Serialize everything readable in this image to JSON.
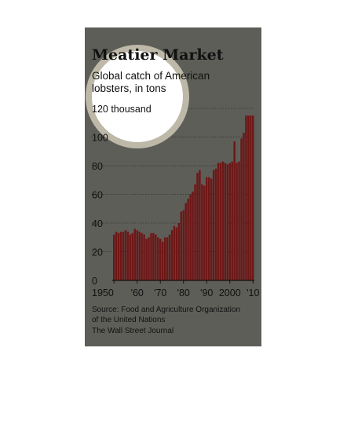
{
  "chart_data": {
    "type": "bar",
    "title": "Meatier Market",
    "subtitle": "Global catch of American lobsters, in tons",
    "subtitle_lines": [
      "Global catch of American",
      "lobsters, in tons"
    ],
    "ylabel": "",
    "xlabel": "",
    "ylim": [
      0,
      120
    ],
    "y_ticks": [
      {
        "value": 0,
        "label": "0"
      },
      {
        "value": 20,
        "label": "20"
      },
      {
        "value": 40,
        "label": "40"
      },
      {
        "value": 60,
        "label": "60"
      },
      {
        "value": 80,
        "label": "80"
      },
      {
        "value": 100,
        "label": "100"
      },
      {
        "value": 120,
        "label": "120 thousand"
      }
    ],
    "x_ticks": [
      {
        "value": 1950,
        "label": "1950"
      },
      {
        "value": 1960,
        "label": "'60"
      },
      {
        "value": 1970,
        "label": "'70"
      },
      {
        "value": 1980,
        "label": "'80"
      },
      {
        "value": 1990,
        "label": "'90"
      },
      {
        "value": 2000,
        "label": "2000"
      },
      {
        "value": 2010,
        "label": "'10"
      }
    ],
    "grid": true,
    "categories": [
      1950,
      1951,
      1952,
      1953,
      1954,
      1955,
      1956,
      1957,
      1958,
      1959,
      1960,
      1961,
      1962,
      1963,
      1964,
      1965,
      1966,
      1967,
      1968,
      1969,
      1970,
      1971,
      1972,
      1973,
      1974,
      1975,
      1976,
      1977,
      1978,
      1979,
      1980,
      1981,
      1982,
      1983,
      1984,
      1985,
      1986,
      1987,
      1988,
      1989,
      1990,
      1991,
      1992,
      1993,
      1994,
      1995,
      1996,
      1997,
      1998,
      1999,
      2000,
      2001,
      2002,
      2003,
      2004,
      2005,
      2006,
      2007,
      2008,
      2009,
      2010
    ],
    "values": [
      32,
      34,
      33,
      34,
      34,
      35,
      34,
      32,
      33,
      36,
      35,
      34,
      33,
      32,
      29,
      30,
      33,
      33,
      32,
      30,
      29,
      27,
      30,
      30,
      32,
      35,
      38,
      37,
      40,
      48,
      49,
      54,
      57,
      60,
      62,
      67,
      75,
      77,
      67,
      66,
      72,
      72,
      71,
      77,
      78,
      82,
      82,
      83,
      82,
      81,
      82,
      83,
      97,
      82,
      83,
      99,
      103,
      115,
      115,
      115,
      115
    ],
    "bar_color": "#6e1616",
    "source": "Source: Food and Agriculture Organization of the United Nations",
    "source_lines": [
      "Source: Food and Agriculture Organization",
      "of the United Nations"
    ],
    "credit": "The Wall Street Journal"
  }
}
